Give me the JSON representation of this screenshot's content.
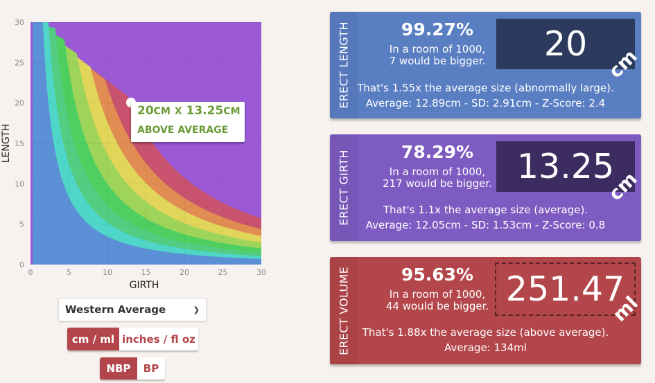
{
  "chart": {
    "xlabel": "GIRTH",
    "ylabel": "LENGTH",
    "x_ticks": [
      "0",
      "5",
      "10",
      "15",
      "20",
      "25",
      "30"
    ],
    "y_ticks": [
      "0",
      "5",
      "10",
      "15",
      "20",
      "25",
      "30"
    ],
    "tooltip_size": "20cm x 13.25cm",
    "tooltip_category": "ABOVE AVERAGE",
    "tooltip_color": "#6a9a36",
    "band_colors": [
      "#5b8fd6",
      "#4fd6c8",
      "#52cd82",
      "#4fcf5f",
      "#9fd45a",
      "#e1d55a",
      "#e08c52",
      "#c9526e",
      "#9b59d6"
    ]
  },
  "controls": {
    "region": "Western Average",
    "units_selected": "cm / ml",
    "units_other": "inches / fl oz",
    "mode_selected": "NBP",
    "mode_other": "BP"
  },
  "cards": {
    "length": {
      "title": "ERECT LENGTH",
      "percent": "99.27%",
      "room_line1": "In a room of 1000,",
      "room_line2": "7 would be bigger.",
      "value": "20",
      "unit": "cm",
      "summary1": "That's 1.55x the average size (abnormally large).",
      "summary2": "Average: 12.89cm - SD: 2.91cm - Z-Score: 2.4"
    },
    "girth": {
      "title": "ERECT GIRTH",
      "percent": "78.29%",
      "room_line1": "In a room of 1000,",
      "room_line2": "217 would be bigger.",
      "value": "13.25",
      "unit": "cm",
      "summary1": "That's 1.1x the average size (average).",
      "summary2": "Average: 12.05cm - SD: 1.53cm - Z-Score: 0.8"
    },
    "volume": {
      "title": "ERECT VOLUME",
      "percent": "95.63%",
      "room_line1": "In a room of 1000,",
      "room_line2": "44 would be bigger.",
      "value": "251.47",
      "unit": "ml",
      "summary1": "That's 1.88x the average size (above average).",
      "summary2": "Average: 134ml"
    }
  }
}
